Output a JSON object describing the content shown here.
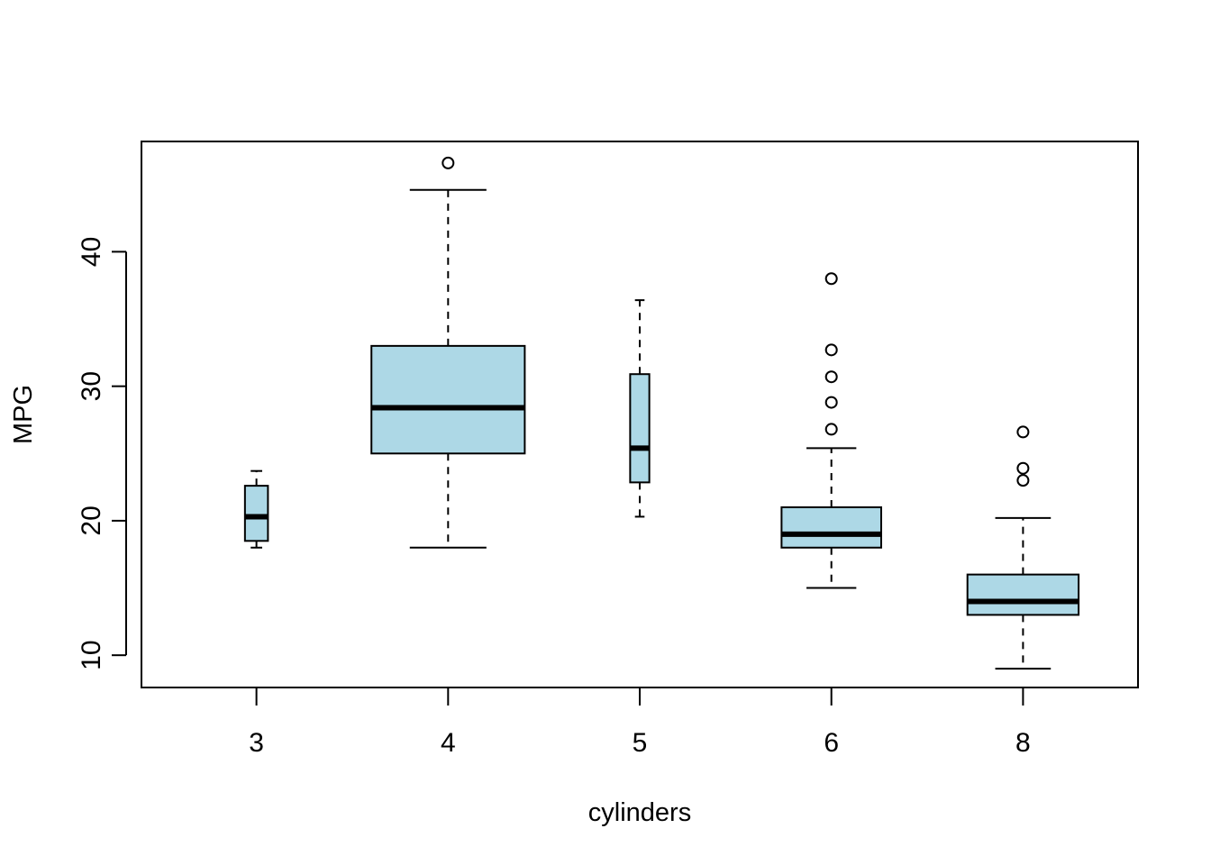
{
  "chart_data": {
    "type": "boxplot",
    "title": "",
    "xlabel": "cylinders",
    "ylabel": "MPG",
    "ylim": [
      7.6,
      48.2
    ],
    "y_ticks": [
      10,
      20,
      30,
      40
    ],
    "grid": false,
    "box_fill": "#add8e6",
    "categories": [
      "3",
      "4",
      "5",
      "6",
      "8"
    ],
    "box_widths": [
      0.12,
      0.8,
      0.1,
      0.52,
      0.58
    ],
    "boxes": [
      {
        "category": "3",
        "min": 18.0,
        "q1": 18.5,
        "median": 20.3,
        "q3": 22.6,
        "max": 23.7,
        "outliers": []
      },
      {
        "category": "4",
        "min": 18.0,
        "q1": 25.0,
        "median": 28.4,
        "q3": 33.0,
        "max": 44.6,
        "outliers": [
          46.6
        ]
      },
      {
        "category": "5",
        "min": 20.3,
        "q1": 22.85,
        "median": 25.4,
        "q3": 30.9,
        "max": 36.4,
        "outliers": []
      },
      {
        "category": "6",
        "min": 15.0,
        "q1": 18.0,
        "median": 19.0,
        "q3": 21.0,
        "max": 25.4,
        "outliers": [
          26.8,
          28.8,
          30.7,
          32.7,
          38.0
        ]
      },
      {
        "category": "8",
        "min": 9.0,
        "q1": 13.0,
        "median": 14.0,
        "q3": 16.0,
        "max": 20.2,
        "outliers": [
          23.0,
          23.9,
          26.6
        ]
      }
    ]
  }
}
